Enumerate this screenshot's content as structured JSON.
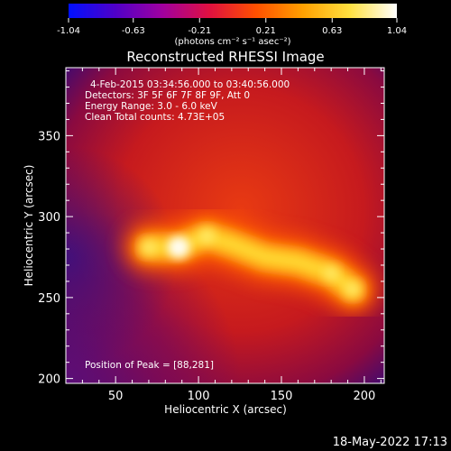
{
  "colorbar": {
    "tick_labels": [
      "-1.04",
      "-0.63",
      "-0.21",
      "0.21",
      "0.63",
      "1.04"
    ],
    "units": "(photons cm⁻² s⁻¹ asec⁻²)",
    "stops": [
      "#0010ff",
      "#5000c8",
      "#a000a0",
      "#e01040",
      "#ff5000",
      "#ffa000",
      "#ffe040",
      "#ffffff"
    ]
  },
  "chart_data": {
    "type": "heatmap",
    "title": "Reconstructed RHESSI Image",
    "xlabel": "Heliocentric X (arcsec)",
    "ylabel": "Heliocentric Y (arcsec)",
    "xlim": [
      20,
      212
    ],
    "ylim": [
      197,
      392
    ],
    "x_ticks": [
      50,
      100,
      150,
      200
    ],
    "y_ticks": [
      200,
      250,
      300,
      350
    ],
    "annotations": [
      "4-Feb-2015 03:34:56.000 to 03:40:56.000",
      "Detectors: 3F 5F 6F 7F 8F 9F, Att 0",
      "Energy Range: 3.0 - 6.0 keV",
      "Clean     Total counts: 4.73E+05"
    ],
    "peak_label": "Position of Peak = [88,281]",
    "peak": {
      "x": 88,
      "y": 281
    },
    "ridge": [
      {
        "x": 70,
        "y": 281,
        "level": 0.85
      },
      {
        "x": 88,
        "y": 281,
        "level": 1.0
      },
      {
        "x": 105,
        "y": 288,
        "level": 0.9
      },
      {
        "x": 120,
        "y": 283,
        "level": 0.8
      },
      {
        "x": 140,
        "y": 275,
        "level": 0.75
      },
      {
        "x": 160,
        "y": 272,
        "level": 0.8
      },
      {
        "x": 180,
        "y": 265,
        "level": 0.82
      },
      {
        "x": 193,
        "y": 255,
        "level": 0.85
      }
    ],
    "colorscale": "hot-cold",
    "vmin": -1.04,
    "vmax": 1.04
  },
  "timestamp": "18-May-2022 17:13"
}
